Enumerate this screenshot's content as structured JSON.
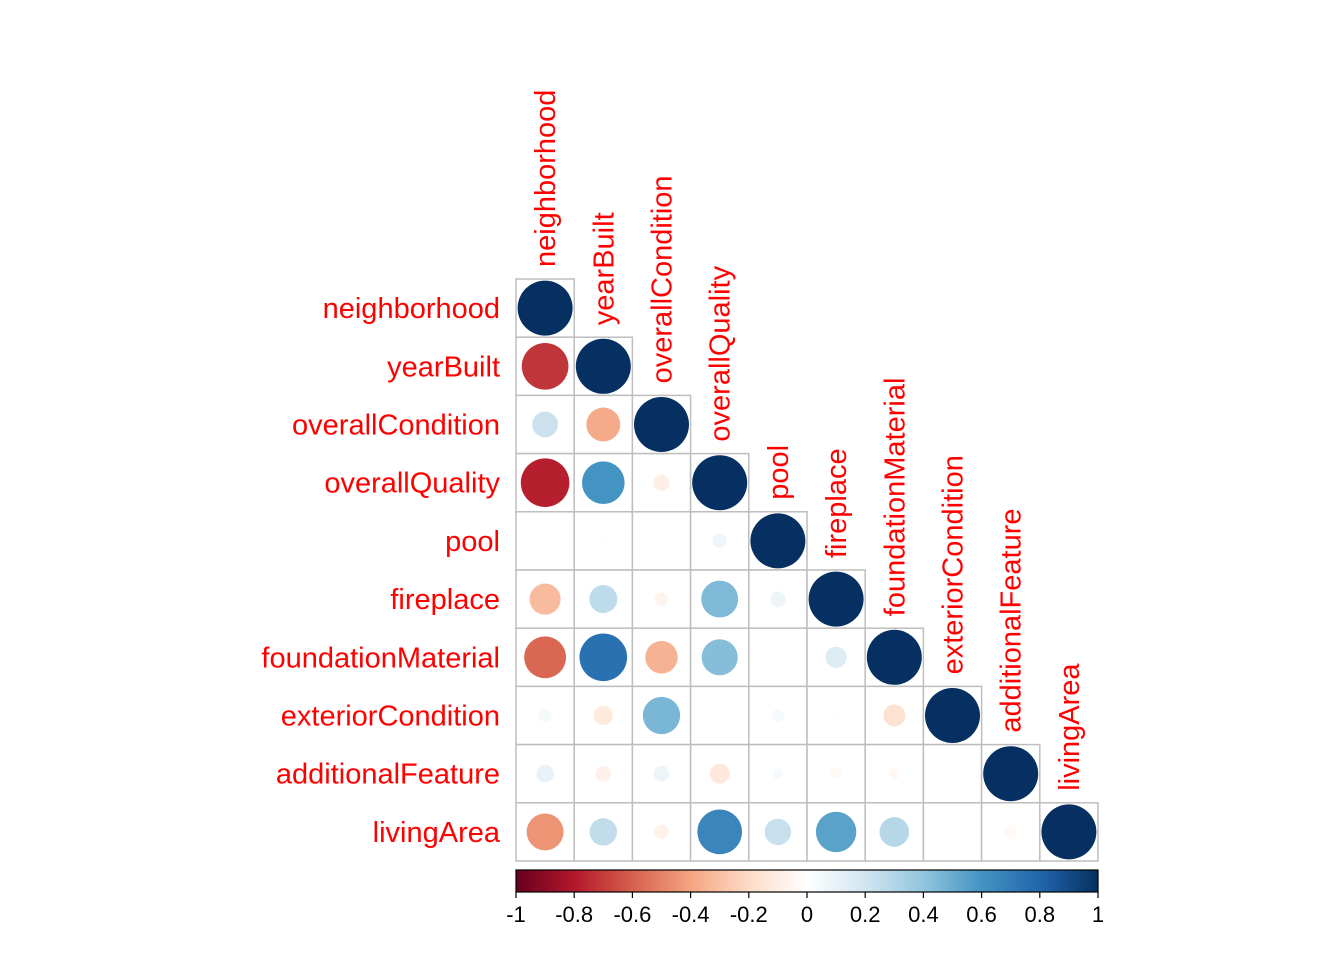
{
  "chart_data": {
    "type": "heatmap",
    "title": "",
    "variables": [
      "neighborhood",
      "yearBuilt",
      "overallCondition",
      "overallQuality",
      "pool",
      "fireplace",
      "foundationMaterial",
      "exteriorCondition",
      "additionalFeature",
      "livingArea"
    ],
    "matrix": [
      [
        1.0,
        -0.72,
        0.22,
        -0.78,
        0.0,
        -0.32,
        -0.58,
        0.05,
        0.1,
        -0.45
      ],
      [
        -0.72,
        1.0,
        -0.38,
        0.6,
        0.01,
        0.26,
        0.75,
        -0.12,
        -0.08,
        0.25
      ],
      [
        0.22,
        -0.38,
        1.0,
        -0.09,
        0.0,
        -0.06,
        -0.35,
        0.46,
        0.08,
        -0.07
      ],
      [
        -0.78,
        0.6,
        -0.09,
        1.0,
        0.07,
        0.45,
        0.43,
        0.01,
        -0.13,
        0.66
      ],
      [
        0.0,
        0.01,
        0.0,
        0.07,
        1.0,
        0.08,
        0.0,
        0.05,
        0.04,
        0.23
      ],
      [
        -0.32,
        0.26,
        -0.06,
        0.45,
        0.08,
        1.0,
        0.15,
        0.01,
        -0.04,
        0.54
      ],
      [
        -0.58,
        0.75,
        -0.35,
        0.43,
        0.0,
        0.15,
        1.0,
        -0.16,
        -0.04,
        0.29
      ],
      [
        0.05,
        -0.12,
        0.46,
        0.01,
        0.05,
        0.01,
        -0.16,
        1.0,
        0.01,
        0.01
      ],
      [
        0.1,
        -0.08,
        0.08,
        -0.13,
        0.04,
        -0.04,
        -0.04,
        0.01,
        1.0,
        -0.04
      ],
      [
        -0.45,
        0.25,
        -0.07,
        0.66,
        0.23,
        0.54,
        0.29,
        0.01,
        -0.04,
        1.0
      ]
    ],
    "triangle": "lower",
    "colorbar": {
      "min": -1,
      "max": 1,
      "ticks": [
        "-1",
        "-0.8",
        "-0.6",
        "-0.4",
        "-0.2",
        "0",
        "0.2",
        "0.4",
        "0.6",
        "0.8",
        "1"
      ],
      "colors": [
        "#67001F",
        "#B2182B",
        "#D6604D",
        "#F4A582",
        "#FDDBC7",
        "#FFFFFF",
        "#D1E5F0",
        "#92C5DE",
        "#4393C3",
        "#2166AC",
        "#053061"
      ]
    },
    "label_color": "#FF0000",
    "grid_color": "#BEBEBE"
  }
}
